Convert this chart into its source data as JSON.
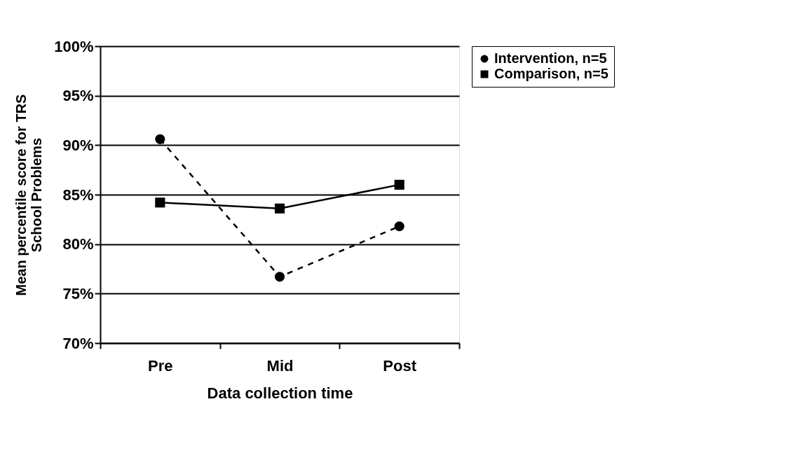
{
  "chart_data": {
    "type": "line",
    "xlabel": "Data collection time",
    "ylabel": "Mean percentile score for TRS School Problems",
    "categories": [
      "Pre",
      "Mid",
      "Post"
    ],
    "series": [
      {
        "name": "Intervention, n=5",
        "color": "#000000",
        "values": [
          90.6,
          76.7,
          81.8
        ],
        "line_style": "dashed",
        "marker": "circle"
      },
      {
        "name": "Comparison, n=5",
        "color": "#000000",
        "values": [
          84.2,
          83.6,
          86.0
        ],
        "line_style": "solid",
        "marker": "square"
      }
    ],
    "ylim": [
      70,
      100
    ],
    "yticks": [
      {
        "value": 70,
        "label": "70%"
      },
      {
        "value": 75,
        "label": "75%"
      },
      {
        "value": 80,
        "label": "80%"
      },
      {
        "value": 85,
        "label": "85%"
      },
      {
        "value": 90,
        "label": "90%"
      },
      {
        "value": 95,
        "label": "95%"
      },
      {
        "value": 100,
        "label": "100%"
      }
    ],
    "grid": "y",
    "legend": "right"
  }
}
